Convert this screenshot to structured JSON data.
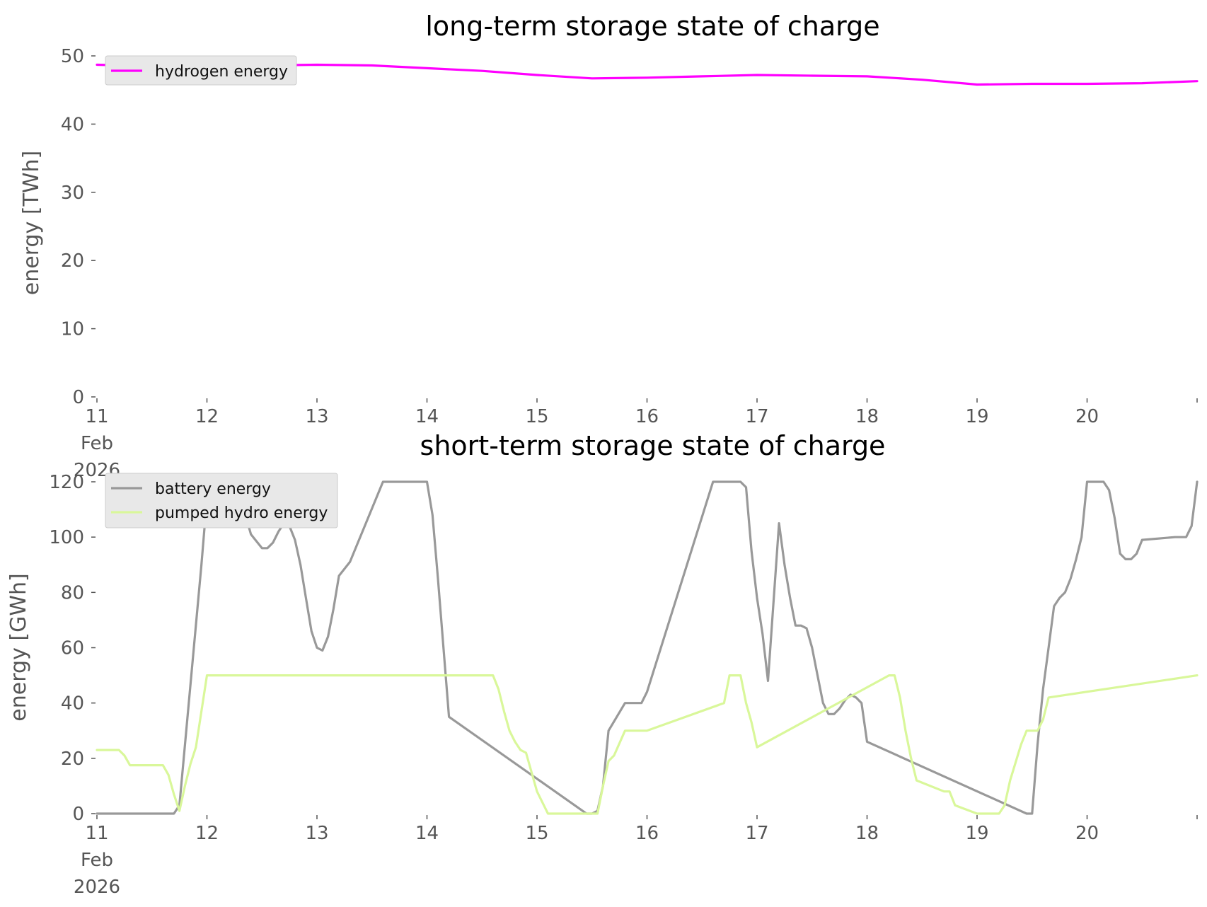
{
  "colors": {
    "hydrogen": "#ff00ff",
    "battery": "#999999",
    "pumped_hydro": "#d9f79a",
    "legend_bg": "#e8e8e8",
    "legend_border": "#cccccc",
    "background": "#ffffff"
  },
  "chart_data": [
    {
      "type": "line",
      "title": "long-term storage state of charge",
      "xlabel": "",
      "ylabel": "energy [TWh]",
      "x_tick_labels": [
        [
          "11",
          "Feb",
          "2026"
        ],
        [
          "12"
        ],
        [
          "13"
        ],
        [
          "14"
        ],
        [
          "15"
        ],
        [
          "16"
        ],
        [
          "17"
        ],
        [
          "18"
        ],
        [
          "19"
        ],
        [
          "20"
        ],
        [
          ""
        ]
      ],
      "x_tick_values": [
        0,
        1,
        2,
        3,
        4,
        5,
        6,
        7,
        8,
        9,
        10
      ],
      "xlim": [
        0,
        10
      ],
      "ylim": [
        0,
        50
      ],
      "y_ticks": [
        0,
        10,
        20,
        30,
        40,
        50
      ],
      "grid": false,
      "legend_position": "top-left",
      "series": [
        {
          "name": "hydrogen energy",
          "color_key": "hydrogen",
          "x": [
            0,
            0.5,
            1,
            1.5,
            2,
            2.5,
            3,
            3.5,
            4,
            4.5,
            5,
            5.5,
            6,
            6.5,
            7,
            7.5,
            8,
            8.5,
            9,
            9.5,
            10
          ],
          "y": [
            48.7,
            48.5,
            48.5,
            48.6,
            48.7,
            48.6,
            48.2,
            47.8,
            47.2,
            46.7,
            46.8,
            47.0,
            47.2,
            47.1,
            47.0,
            46.5,
            45.8,
            45.9,
            45.9,
            46.0,
            46.3
          ]
        }
      ]
    },
    {
      "type": "line",
      "title": "short-term storage state of charge",
      "xlabel": "",
      "ylabel": "energy [GWh]",
      "x_tick_labels": [
        [
          "11",
          "Feb",
          "2026"
        ],
        [
          "12"
        ],
        [
          "13"
        ],
        [
          "14"
        ],
        [
          "15"
        ],
        [
          "16"
        ],
        [
          "17"
        ],
        [
          "18"
        ],
        [
          "19"
        ],
        [
          "20"
        ],
        [
          ""
        ]
      ],
      "x_tick_values": [
        0,
        1,
        2,
        3,
        4,
        5,
        6,
        7,
        8,
        9,
        10
      ],
      "xlim": [
        0,
        10
      ],
      "ylim": [
        0,
        120
      ],
      "y_ticks": [
        0,
        20,
        40,
        60,
        80,
        100,
        120
      ],
      "grid": false,
      "legend_position": "top-left",
      "series": [
        {
          "name": "battery energy",
          "color_key": "battery",
          "x": [
            0,
            0.7,
            0.75,
            0.95,
            1.0,
            1.1,
            1.2,
            1.3,
            1.35,
            1.4,
            1.5,
            1.55,
            1.6,
            1.65,
            1.7,
            1.75,
            1.8,
            1.85,
            1.9,
            1.95,
            2.0,
            2.05,
            2.1,
            2.15,
            2.2,
            2.3,
            2.6,
            2.65,
            2.7,
            2.8,
            2.9,
            3.0,
            3.05,
            3.1,
            3.15,
            3.2,
            4.45,
            4.5,
            4.55,
            4.6,
            4.65,
            4.8,
            4.85,
            4.9,
            4.95,
            5.0,
            5.6,
            5.65,
            5.7,
            5.75,
            5.8,
            5.85,
            5.9,
            5.95,
            6.0,
            6.05,
            6.1,
            6.2,
            6.25,
            6.3,
            6.35,
            6.4,
            6.45,
            6.5,
            6.55,
            6.6,
            6.65,
            6.7,
            6.75,
            6.8,
            6.85,
            6.9,
            6.95,
            7.0,
            8.45,
            8.5,
            8.55,
            8.6,
            8.65,
            8.7,
            8.75,
            8.8,
            8.85,
            8.9,
            8.95,
            9.0,
            9.1,
            9.15,
            9.2,
            9.25,
            9.3,
            9.35,
            9.4,
            9.45,
            9.5,
            9.8,
            9.85,
            9.9,
            9.95,
            10.0
          ],
          "y": [
            0,
            0,
            3,
            90,
            114,
            115,
            120,
            115,
            108,
            101,
            96,
            96,
            98,
            102,
            105,
            104,
            99,
            90,
            78,
            66,
            60,
            59,
            64,
            74,
            86,
            91,
            120,
            120,
            120,
            120,
            120,
            120,
            108,
            85,
            60,
            35,
            0,
            0,
            1,
            10,
            30,
            40,
            40,
            40,
            40,
            44,
            120,
            120,
            120,
            120,
            120,
            120,
            118,
            95,
            78,
            65,
            48,
            105,
            90,
            78,
            68,
            68,
            67,
            60,
            50,
            40,
            36,
            36,
            38,
            41,
            43,
            42,
            40,
            26,
            0,
            0,
            25,
            45,
            60,
            75,
            78,
            80,
            85,
            92,
            100,
            120,
            120,
            120,
            117,
            107,
            94,
            92,
            92,
            94,
            99,
            100,
            100,
            100,
            104,
            120
          ]
        },
        {
          "name": "pumped hydro energy",
          "color_key": "pumped_hydro",
          "x": [
            0,
            0.2,
            0.25,
            0.3,
            0.6,
            0.65,
            0.7,
            0.75,
            0.8,
            0.85,
            0.9,
            1.0,
            3.6,
            3.65,
            3.7,
            3.75,
            3.8,
            3.85,
            3.9,
            4.0,
            4.1,
            4.5,
            4.55,
            4.6,
            4.65,
            4.7,
            4.8,
            4.85,
            5.0,
            5.7,
            5.75,
            5.8,
            5.85,
            5.9,
            5.95,
            6.0,
            7.2,
            7.25,
            7.3,
            7.35,
            7.4,
            7.45,
            7.7,
            7.75,
            7.8,
            8.0,
            8.05,
            8.1,
            8.15,
            8.2,
            8.25,
            8.3,
            8.4,
            8.45,
            8.5,
            8.55,
            8.6,
            8.65,
            10.0
          ],
          "y": [
            23,
            23,
            21,
            17.5,
            17.5,
            14,
            7,
            1,
            10,
            18,
            24,
            50,
            50,
            45,
            37,
            30,
            26,
            23,
            22,
            8,
            0,
            0,
            0,
            10,
            19,
            21,
            30,
            30,
            30,
            40,
            50,
            50,
            50,
            40,
            33,
            24,
            50,
            50,
            42,
            30,
            20,
            12,
            8,
            8,
            3,
            0,
            0,
            0,
            0,
            0,
            3,
            12,
            25,
            30,
            30,
            30,
            34,
            42,
            50
          ]
        }
      ]
    }
  ]
}
